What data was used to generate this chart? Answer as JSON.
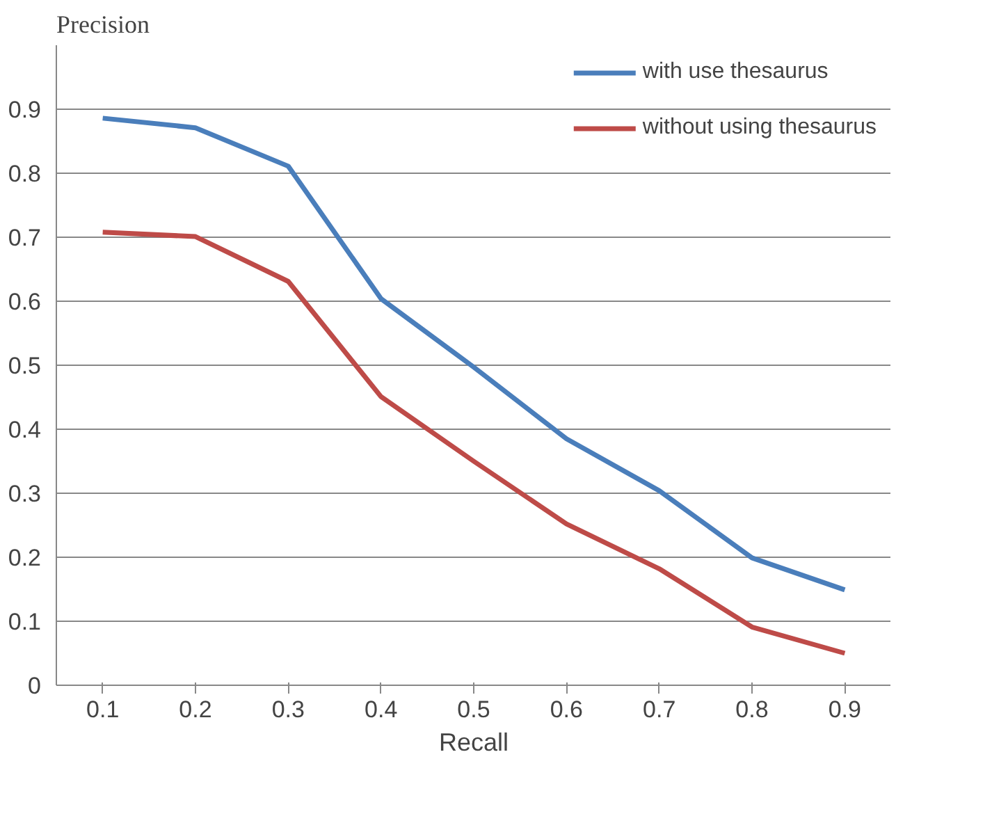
{
  "chart_data": {
    "type": "line",
    "xlabel": "Recall",
    "ylabel": "Precision",
    "categories": [
      "0.1",
      "0.2",
      "0.3",
      "0.4",
      "0.5",
      "0.6",
      "0.7",
      "0.8",
      "0.9"
    ],
    "series": [
      {
        "name": "with use thesaurus",
        "color": "#4a7ebb",
        "values": [
          0.886,
          0.871,
          0.811,
          0.604,
          0.497,
          0.385,
          0.304,
          0.199,
          0.149
        ]
      },
      {
        "name": "without using thesaurus",
        "color": "#be4b48",
        "values": [
          0.708,
          0.701,
          0.631,
          0.451,
          0.35,
          0.252,
          0.182,
          0.091,
          0.05
        ]
      }
    ],
    "ylim": [
      0,
      1
    ],
    "yticks": [
      0,
      0.1,
      0.2,
      0.3,
      0.4,
      0.5,
      0.6,
      0.7,
      0.8,
      0.9
    ],
    "grid": "y",
    "legend": "top right",
    "marker": "none",
    "line_style": "solid"
  }
}
